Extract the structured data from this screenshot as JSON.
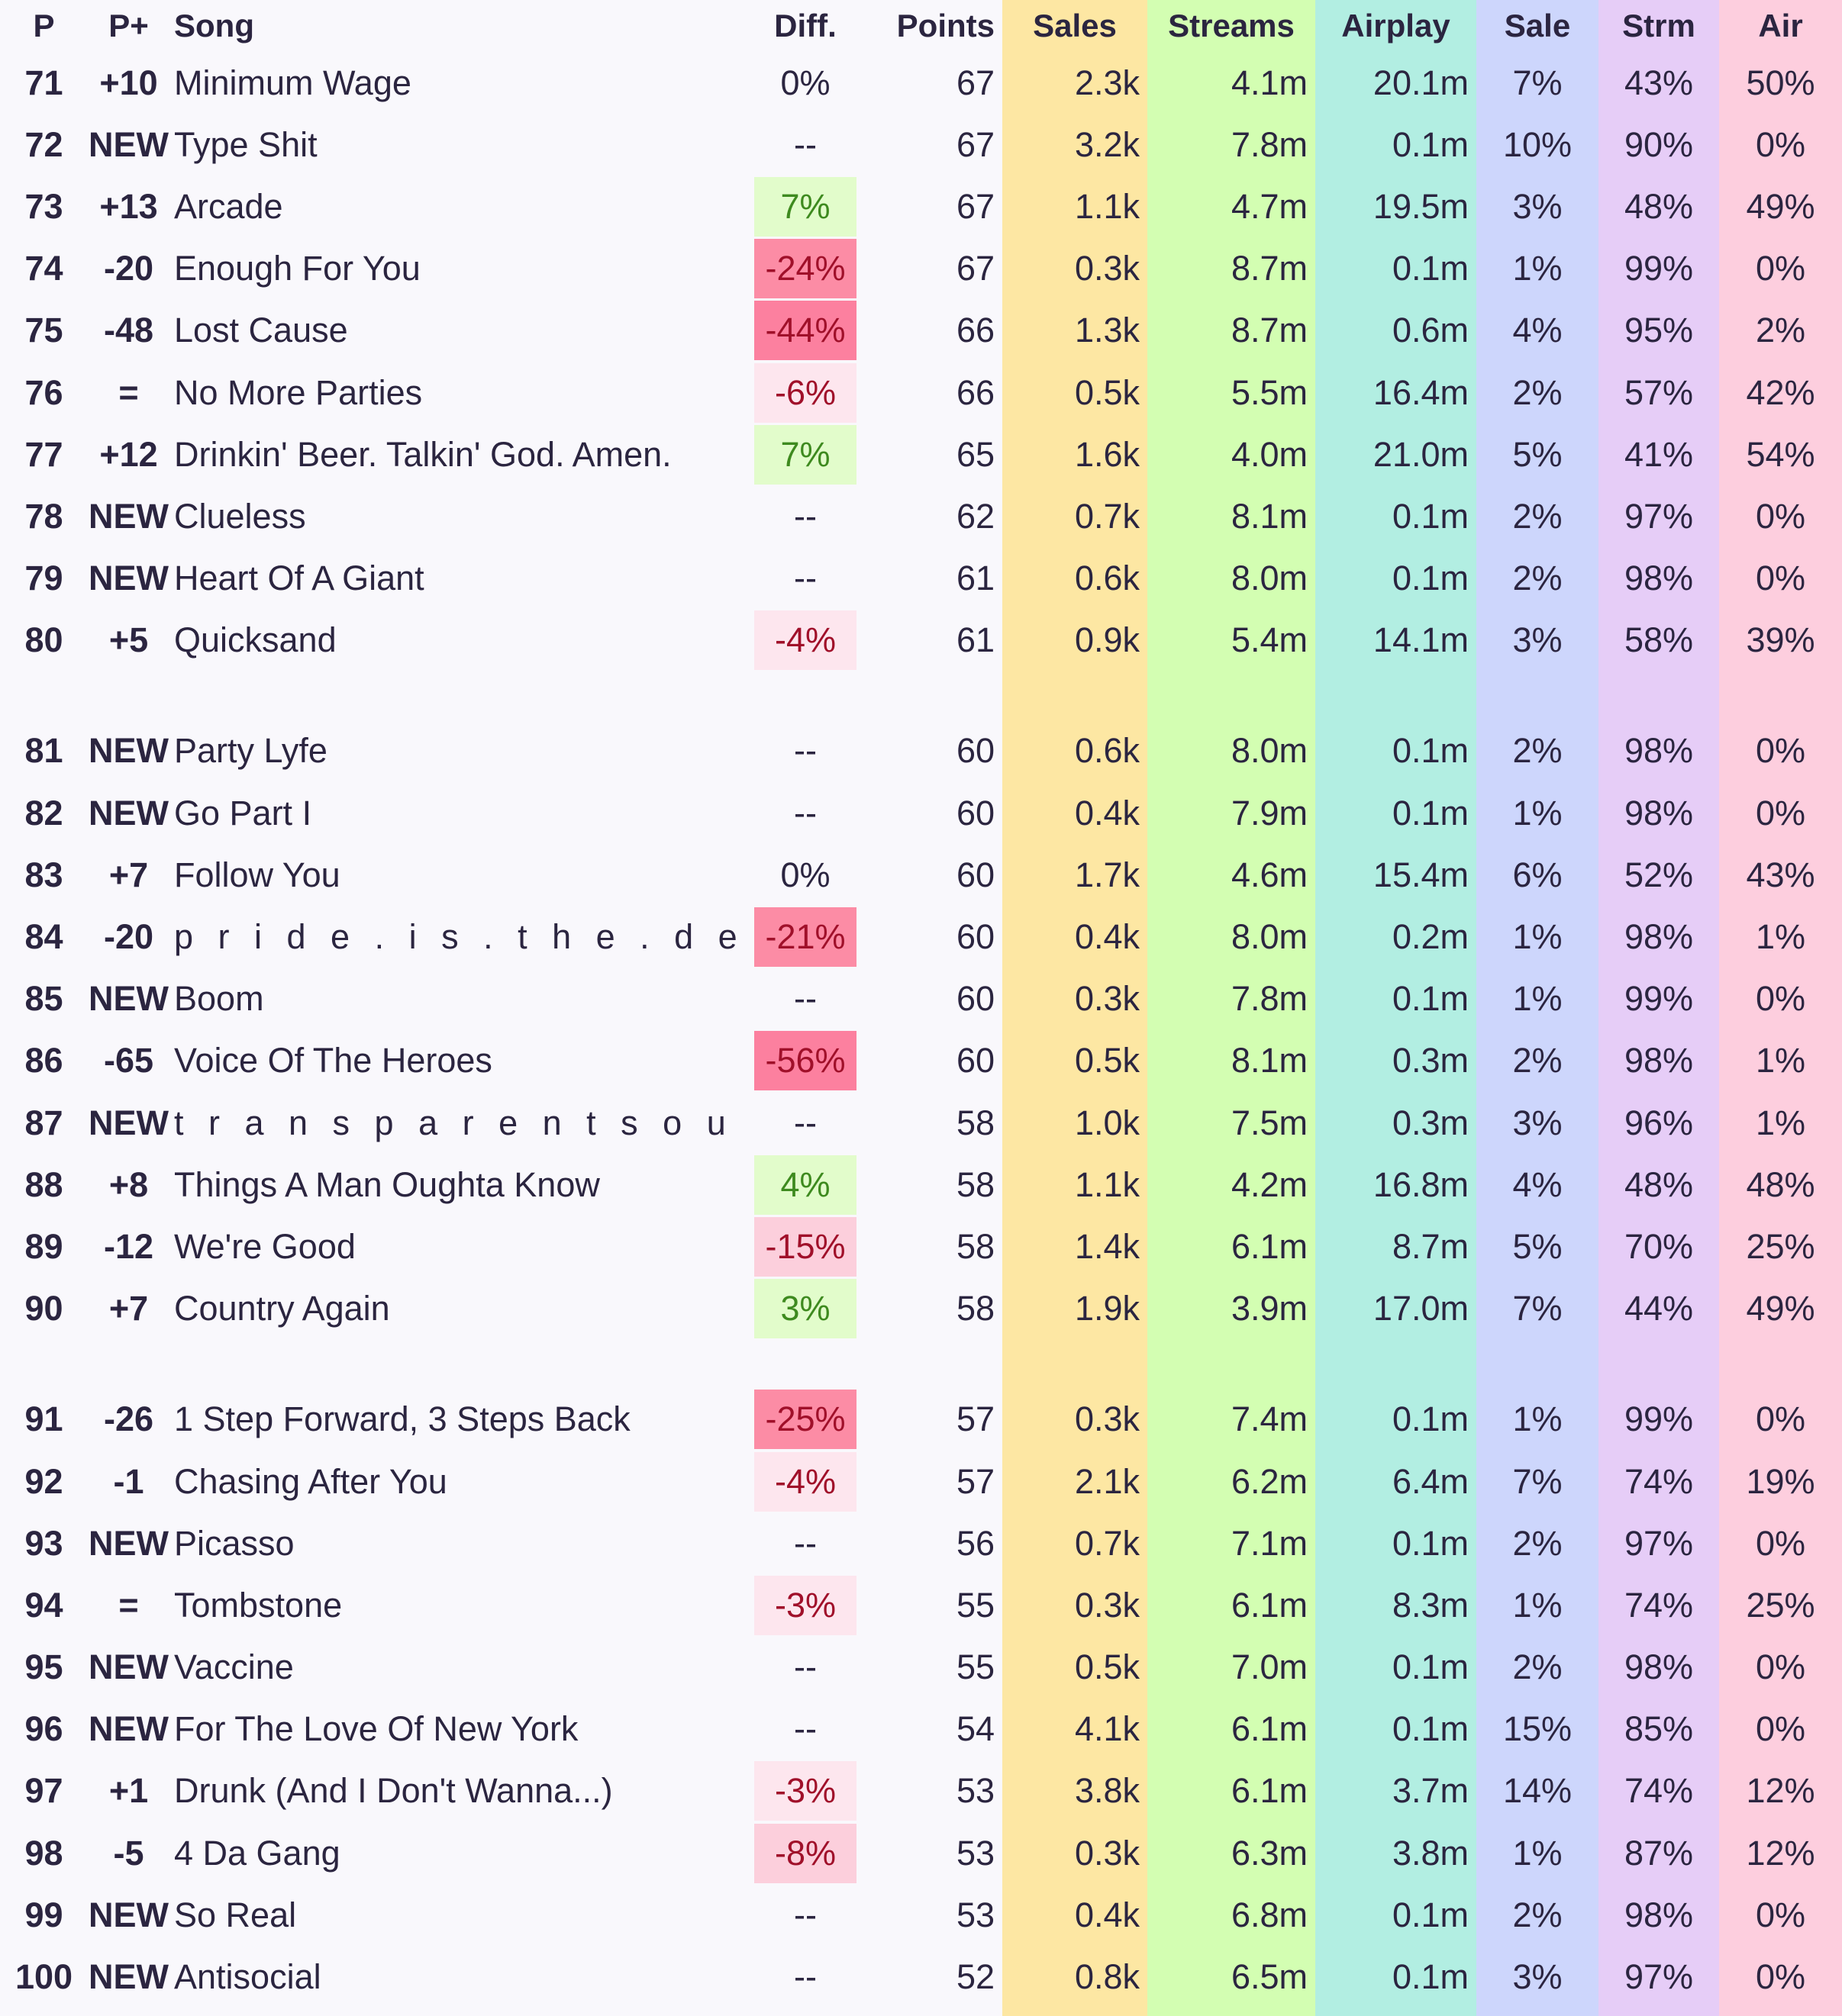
{
  "headers": {
    "pos": "P",
    "change": "P+",
    "song": "Song",
    "diff": "Diff.",
    "points": "Points",
    "sales": "Sales",
    "streams": "Streams",
    "airplay": "Airplay",
    "sale_pct": "Sale",
    "strm_pct": "Strm",
    "air_pct": "Air"
  },
  "colors": {
    "sales_bg": "#fde7a3",
    "streams_bg": "#d3feb2",
    "airplay_bg": "#b2eee2",
    "sale_bg": "#cdd6fc",
    "strm_bg": "#e6cdf7",
    "air_bg": "#fdcede",
    "new_badge": "#7b58d6",
    "up": "#2f7a15",
    "down": "#d0101a"
  },
  "rows": [
    {
      "pos": "71",
      "change": "+10",
      "song": "Minimum Wage",
      "diff": "0%",
      "points": "67",
      "sales": "2.3k",
      "streams": "4.1m",
      "airplay": "20.1m",
      "sale_pct": "7%",
      "strm_pct": "43%",
      "air_pct": "50%"
    },
    {
      "pos": "72",
      "change": "NEW",
      "song": "Type Shit",
      "diff": "--",
      "points": "67",
      "sales": "3.2k",
      "streams": "7.8m",
      "airplay": "0.1m",
      "sale_pct": "10%",
      "strm_pct": "90%",
      "air_pct": "0%"
    },
    {
      "pos": "73",
      "change": "+13",
      "song": "Arcade",
      "diff": "7%",
      "points": "67",
      "sales": "1.1k",
      "streams": "4.7m",
      "airplay": "19.5m",
      "sale_pct": "3%",
      "strm_pct": "48%",
      "air_pct": "49%"
    },
    {
      "pos": "74",
      "change": "-20",
      "song": "Enough For You",
      "diff": "-24%",
      "points": "67",
      "sales": "0.3k",
      "streams": "8.7m",
      "airplay": "0.1m",
      "sale_pct": "1%",
      "strm_pct": "99%",
      "air_pct": "0%"
    },
    {
      "pos": "75",
      "change": "-48",
      "song": "Lost Cause",
      "diff": "-44%",
      "points": "66",
      "sales": "1.3k",
      "streams": "8.7m",
      "airplay": "0.6m",
      "sale_pct": "4%",
      "strm_pct": "95%",
      "air_pct": "2%"
    },
    {
      "pos": "76",
      "change": "=",
      "song": "No More Parties",
      "diff": "-6%",
      "points": "66",
      "sales": "0.5k",
      "streams": "5.5m",
      "airplay": "16.4m",
      "sale_pct": "2%",
      "strm_pct": "57%",
      "air_pct": "42%"
    },
    {
      "pos": "77",
      "change": "+12",
      "song": "Drinkin' Beer. Talkin' God. Amen.",
      "diff": "7%",
      "points": "65",
      "sales": "1.6k",
      "streams": "4.0m",
      "airplay": "21.0m",
      "sale_pct": "5%",
      "strm_pct": "41%",
      "air_pct": "54%"
    },
    {
      "pos": "78",
      "change": "NEW",
      "song": "Clueless",
      "diff": "--",
      "points": "62",
      "sales": "0.7k",
      "streams": "8.1m",
      "airplay": "0.1m",
      "sale_pct": "2%",
      "strm_pct": "97%",
      "air_pct": "0%"
    },
    {
      "pos": "79",
      "change": "NEW",
      "song": "Heart Of A Giant",
      "diff": "--",
      "points": "61",
      "sales": "0.6k",
      "streams": "8.0m",
      "airplay": "0.1m",
      "sale_pct": "2%",
      "strm_pct": "98%",
      "air_pct": "0%"
    },
    {
      "pos": "80",
      "change": "+5",
      "song": "Quicksand",
      "diff": "-4%",
      "points": "61",
      "sales": "0.9k",
      "streams": "5.4m",
      "airplay": "14.1m",
      "sale_pct": "3%",
      "strm_pct": "58%",
      "air_pct": "39%"
    },
    {
      "pos": "81",
      "change": "NEW",
      "song": "Party Lyfe",
      "diff": "--",
      "points": "60",
      "sales": "0.6k",
      "streams": "8.0m",
      "airplay": "0.1m",
      "sale_pct": "2%",
      "strm_pct": "98%",
      "air_pct": "0%"
    },
    {
      "pos": "82",
      "change": "NEW",
      "song": "Go Part I",
      "diff": "--",
      "points": "60",
      "sales": "0.4k",
      "streams": "7.9m",
      "airplay": "0.1m",
      "sale_pct": "1%",
      "strm_pct": "98%",
      "air_pct": "0%"
    },
    {
      "pos": "83",
      "change": "+7",
      "song": "Follow You",
      "diff": "0%",
      "points": "60",
      "sales": "1.7k",
      "streams": "4.6m",
      "airplay": "15.4m",
      "sale_pct": "6%",
      "strm_pct": "52%",
      "air_pct": "43%"
    },
    {
      "pos": "84",
      "change": "-20",
      "song": "p r i d e . i s . t h e . d e v i l",
      "diff": "-21%",
      "points": "60",
      "sales": "0.4k",
      "streams": "8.0m",
      "airplay": "0.2m",
      "sale_pct": "1%",
      "strm_pct": "98%",
      "air_pct": "1%"
    },
    {
      "pos": "85",
      "change": "NEW",
      "song": "Boom",
      "diff": "--",
      "points": "60",
      "sales": "0.3k",
      "streams": "7.8m",
      "airplay": "0.1m",
      "sale_pct": "1%",
      "strm_pct": "99%",
      "air_pct": "0%"
    },
    {
      "pos": "86",
      "change": "-65",
      "song": "Voice Of The Heroes",
      "diff": "-56%",
      "points": "60",
      "sales": "0.5k",
      "streams": "8.1m",
      "airplay": "0.3m",
      "sale_pct": "2%",
      "strm_pct": "98%",
      "air_pct": "1%"
    },
    {
      "pos": "87",
      "change": "NEW",
      "song": "t r a n s p a r e n t s o u l",
      "diff": "--",
      "points": "58",
      "sales": "1.0k",
      "streams": "7.5m",
      "airplay": "0.3m",
      "sale_pct": "3%",
      "strm_pct": "96%",
      "air_pct": "1%"
    },
    {
      "pos": "88",
      "change": "+8",
      "song": "Things A Man Oughta Know",
      "diff": "4%",
      "points": "58",
      "sales": "1.1k",
      "streams": "4.2m",
      "airplay": "16.8m",
      "sale_pct": "4%",
      "strm_pct": "48%",
      "air_pct": "48%"
    },
    {
      "pos": "89",
      "change": "-12",
      "song": "We're Good",
      "diff": "-15%",
      "points": "58",
      "sales": "1.4k",
      "streams": "6.1m",
      "airplay": "8.7m",
      "sale_pct": "5%",
      "strm_pct": "70%",
      "air_pct": "25%"
    },
    {
      "pos": "90",
      "change": "+7",
      "song": "Country Again",
      "diff": "3%",
      "points": "58",
      "sales": "1.9k",
      "streams": "3.9m",
      "airplay": "17.0m",
      "sale_pct": "7%",
      "strm_pct": "44%",
      "air_pct": "49%"
    },
    {
      "pos": "91",
      "change": "-26",
      "song": "1 Step Forward, 3 Steps Back",
      "diff": "-25%",
      "points": "57",
      "sales": "0.3k",
      "streams": "7.4m",
      "airplay": "0.1m",
      "sale_pct": "1%",
      "strm_pct": "99%",
      "air_pct": "0%"
    },
    {
      "pos": "92",
      "change": "-1",
      "song": "Chasing After You",
      "diff": "-4%",
      "points": "57",
      "sales": "2.1k",
      "streams": "6.2m",
      "airplay": "6.4m",
      "sale_pct": "7%",
      "strm_pct": "74%",
      "air_pct": "19%"
    },
    {
      "pos": "93",
      "change": "NEW",
      "song": "Picasso",
      "diff": "--",
      "points": "56",
      "sales": "0.7k",
      "streams": "7.1m",
      "airplay": "0.1m",
      "sale_pct": "2%",
      "strm_pct": "97%",
      "air_pct": "0%"
    },
    {
      "pos": "94",
      "change": "=",
      "song": "Tombstone",
      "diff": "-3%",
      "points": "55",
      "sales": "0.3k",
      "streams": "6.1m",
      "airplay": "8.3m",
      "sale_pct": "1%",
      "strm_pct": "74%",
      "air_pct": "25%"
    },
    {
      "pos": "95",
      "change": "NEW",
      "song": "Vaccine",
      "diff": "--",
      "points": "55",
      "sales": "0.5k",
      "streams": "7.0m",
      "airplay": "0.1m",
      "sale_pct": "2%",
      "strm_pct": "98%",
      "air_pct": "0%"
    },
    {
      "pos": "96",
      "change": "NEW",
      "song": "For The Love Of New York",
      "diff": "--",
      "points": "54",
      "sales": "4.1k",
      "streams": "6.1m",
      "airplay": "0.1m",
      "sale_pct": "15%",
      "strm_pct": "85%",
      "air_pct": "0%"
    },
    {
      "pos": "97",
      "change": "+1",
      "song": "Drunk (And I Don't Wanna...)",
      "diff": "-3%",
      "points": "53",
      "sales": "3.8k",
      "streams": "6.1m",
      "airplay": "3.7m",
      "sale_pct": "14%",
      "strm_pct": "74%",
      "air_pct": "12%"
    },
    {
      "pos": "98",
      "change": "-5",
      "song": "4 Da Gang",
      "diff": "-8%",
      "points": "53",
      "sales": "0.3k",
      "streams": "6.3m",
      "airplay": "3.8m",
      "sale_pct": "1%",
      "strm_pct": "87%",
      "air_pct": "12%"
    },
    {
      "pos": "99",
      "change": "NEW",
      "song": "So Real",
      "diff": "--",
      "points": "53",
      "sales": "0.4k",
      "streams": "6.8m",
      "airplay": "0.1m",
      "sale_pct": "2%",
      "strm_pct": "98%",
      "air_pct": "0%"
    },
    {
      "pos": "100",
      "change": "NEW",
      "song": "Antisocial",
      "diff": "--",
      "points": "52",
      "sales": "0.8k",
      "streams": "6.5m",
      "airplay": "0.1m",
      "sale_pct": "3%",
      "strm_pct": "97%",
      "air_pct": "0%"
    }
  ]
}
